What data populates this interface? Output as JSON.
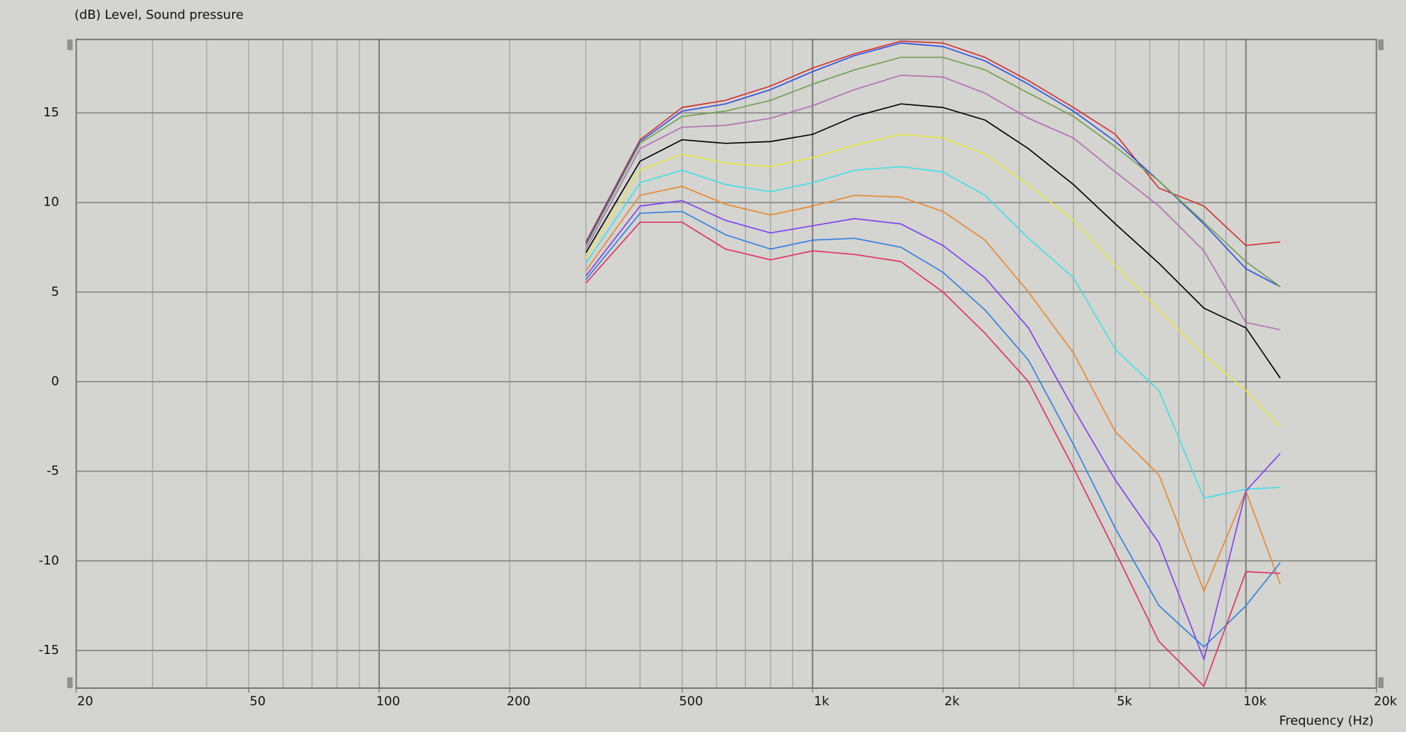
{
  "chart_data": {
    "type": "line",
    "title": "(dB)  Level, Sound pressure",
    "x_label": "Frequency  (Hz)",
    "log_x": true,
    "grid": true,
    "xlim": [
      20,
      20000
    ],
    "ylim": [
      -17.1,
      19.1
    ],
    "xticks": [
      20,
      50,
      100,
      200,
      500,
      {
        "value": 1000,
        "label": "1k"
      },
      {
        "value": 2000,
        "label": "2k"
      },
      {
        "value": 5000,
        "label": "5k"
      },
      {
        "value": 10000,
        "label": "10k"
      },
      {
        "value": 20000,
        "label": "20k"
      }
    ],
    "xgrid": [
      20,
      30,
      40,
      50,
      60,
      70,
      80,
      90,
      100,
      200,
      300,
      400,
      500,
      600,
      700,
      800,
      900,
      1000,
      2000,
      3000,
      4000,
      5000,
      6000,
      7000,
      8000,
      9000,
      10000
    ],
    "yticks": [
      -15,
      -10,
      -5,
      0,
      5,
      10,
      15
    ],
    "x": [
      300,
      400,
      500,
      630,
      800,
      1000,
      1250,
      1600,
      2000,
      2500,
      3150,
      4000,
      5000,
      6300,
      8000,
      10000,
      12000
    ],
    "series": [
      {
        "color": "#d03030",
        "values": [
          7.8,
          13.5,
          15.3,
          15.7,
          16.5,
          17.5,
          18.3,
          19.0,
          18.9,
          18.1,
          16.8,
          15.3,
          13.8,
          10.8,
          9.8,
          7.6,
          7.8
        ]
      },
      {
        "color": "#3050e0",
        "values": [
          7.7,
          13.4,
          15.1,
          15.5,
          16.3,
          17.3,
          18.2,
          18.9,
          18.7,
          17.9,
          16.6,
          15.1,
          13.4,
          11.2,
          8.8,
          6.3,
          5.3
        ]
      },
      {
        "color": "#70a050",
        "values": [
          7.6,
          13.3,
          14.8,
          15.1,
          15.7,
          16.6,
          17.4,
          18.1,
          18.1,
          17.4,
          16.1,
          14.8,
          13.1,
          11.2,
          8.9,
          6.7,
          5.3
        ]
      },
      {
        "color": "#b070b0",
        "values": [
          7.4,
          13.0,
          14.2,
          14.3,
          14.7,
          15.4,
          16.3,
          17.1,
          17.0,
          16.1,
          14.7,
          13.6,
          11.7,
          9.8,
          7.3,
          3.3,
          2.9
        ]
      },
      {
        "color": "#000000",
        "values": [
          7.2,
          12.3,
          13.5,
          13.3,
          13.4,
          13.8,
          14.8,
          15.5,
          15.3,
          14.6,
          13.0,
          11.0,
          8.8,
          6.6,
          4.1,
          3.0,
          0.2
        ]
      },
      {
        "color": "#e8e840",
        "values": [
          6.9,
          11.8,
          12.7,
          12.2,
          12.0,
          12.5,
          13.2,
          13.8,
          13.6,
          12.7,
          11.0,
          9.0,
          6.5,
          4.0,
          1.5,
          -0.5,
          -2.5
        ]
      },
      {
        "color": "#40e0e8",
        "values": [
          6.6,
          11.1,
          11.8,
          11.0,
          10.6,
          11.1,
          11.8,
          12.0,
          11.7,
          10.4,
          8.0,
          5.8,
          1.8,
          -0.5,
          -6.5,
          -6.0,
          -5.9
        ]
      },
      {
        "color": "#e88830",
        "values": [
          6.2,
          10.4,
          10.9,
          9.9,
          9.3,
          9.8,
          10.4,
          10.3,
          9.5,
          7.9,
          5.0,
          1.6,
          -2.8,
          -5.2,
          -11.7,
          -6.1,
          -11.3
        ]
      },
      {
        "color": "#8040f0",
        "values": [
          5.9,
          9.8,
          10.1,
          9.0,
          8.3,
          8.7,
          9.1,
          8.8,
          7.6,
          5.8,
          3.0,
          -1.5,
          -5.5,
          -9.0,
          -15.5,
          -6.1,
          -4.0
        ]
      },
      {
        "color": "#3080e0",
        "values": [
          5.7,
          9.4,
          9.5,
          8.2,
          7.4,
          7.9,
          8.0,
          7.5,
          6.1,
          4.0,
          1.2,
          -3.5,
          -8.2,
          -12.5,
          -14.8,
          -12.5,
          -10.1
        ]
      },
      {
        "color": "#e03060",
        "values": [
          5.5,
          8.9,
          8.9,
          7.4,
          6.8,
          7.3,
          7.1,
          6.7,
          5.0,
          2.7,
          0.0,
          -4.8,
          -9.5,
          -14.5,
          -17.0,
          -10.6,
          -10.7
        ]
      }
    ]
  }
}
